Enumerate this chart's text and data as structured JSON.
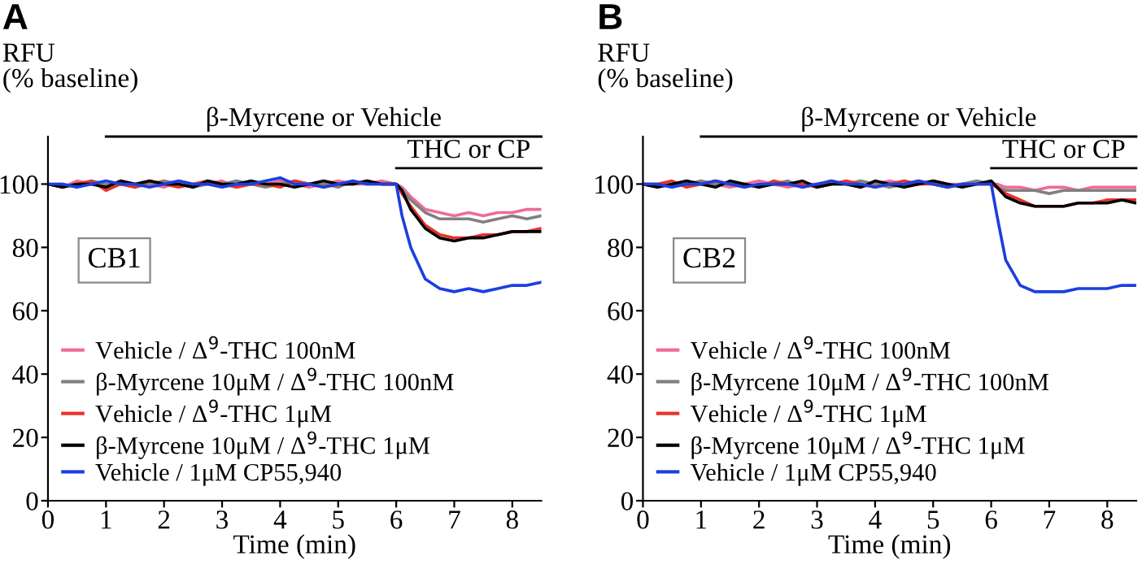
{
  "chart_data": [
    {
      "type": "line",
      "title": "A",
      "ylabel": "RFU\n(% baseline)",
      "xlabel": "Time (min)",
      "x": [
        0,
        0.25,
        0.5,
        0.75,
        1,
        1.25,
        1.5,
        1.75,
        2,
        2.25,
        2.5,
        2.75,
        3,
        3.25,
        3.5,
        3.75,
        4,
        4.25,
        4.5,
        4.75,
        5,
        5.25,
        5.5,
        5.75,
        6,
        6.1,
        6.25,
        6.5,
        6.75,
        7,
        7.25,
        7.5,
        7.75,
        8,
        8.25,
        8.5
      ],
      "series": [
        {
          "name": "Vehicle / Δ$^{9}$-THC 100nM",
          "color": "#f06a9a",
          "values": [
            100,
            99,
            101,
            100,
            99,
            101,
            100,
            100,
            99,
            101,
            100,
            100,
            101,
            99,
            100,
            100,
            101,
            100,
            99,
            100,
            101,
            100,
            100,
            101,
            100,
            99,
            96,
            92,
            91,
            90,
            91,
            90,
            91,
            91,
            92,
            92
          ]
        },
        {
          "name": "β-Myrcene 10μM / Δ$^{9}$-THC 100nM",
          "color": "#808080",
          "values": [
            100,
            100,
            99,
            101,
            100,
            100,
            99,
            100,
            101,
            100,
            99,
            100,
            100,
            101,
            100,
            99,
            100,
            101,
            100,
            100,
            99,
            101,
            100,
            100,
            100,
            98,
            95,
            91,
            89,
            89,
            89,
            88,
            89,
            90,
            89,
            90
          ]
        },
        {
          "name": "Vehicle / Δ$^{9}$-THC 1μM",
          "color": "#e8322a",
          "values": [
            100,
            99,
            100,
            101,
            98,
            100,
            99,
            101,
            100,
            99,
            100,
            101,
            100,
            99,
            100,
            100,
            99,
            101,
            100,
            99,
            100,
            100,
            101,
            100,
            100,
            97,
            93,
            87,
            84,
            83,
            83,
            84,
            84,
            85,
            85,
            86
          ]
        },
        {
          "name": "β-Myrcene 10μM / Δ$^{9}$-THC 1μM",
          "color": "#000000",
          "values": [
            100,
            99,
            100,
            100,
            99,
            101,
            100,
            101,
            100,
            100,
            99,
            101,
            100,
            100,
            101,
            100,
            100,
            99,
            100,
            101,
            100,
            100,
            101,
            100,
            100,
            98,
            92,
            86,
            83,
            82,
            83,
            83,
            84,
            85,
            85,
            85
          ]
        },
        {
          "name": "Vehicle / 1μM CP55,940",
          "color": "#1a3fe0",
          "values": [
            100,
            100,
            99,
            100,
            101,
            100,
            100,
            99,
            100,
            101,
            100,
            100,
            99,
            100,
            100,
            101,
            102,
            100,
            100,
            99,
            100,
            101,
            100,
            100,
            100,
            90,
            80,
            70,
            67,
            66,
            67,
            66,
            67,
            68,
            68,
            69
          ]
        }
      ],
      "xlim": [
        0,
        8.5
      ],
      "ylim": [
        0,
        115
      ],
      "xticks": [
        0,
        1,
        2,
        3,
        4,
        5,
        6,
        7,
        8
      ],
      "yticks": [
        0,
        20,
        40,
        60,
        80,
        100
      ],
      "annotations": [
        "β-Myrcene or Vehicle",
        "THC or CP",
        "CB1"
      ],
      "legend": "bottom left",
      "grid": false
    },
    {
      "type": "line",
      "title": "B",
      "ylabel": "RFU\n(% baseline)",
      "xlabel": "Time (min)",
      "x": [
        0,
        0.25,
        0.5,
        0.75,
        1,
        1.25,
        1.5,
        1.75,
        2,
        2.25,
        2.5,
        2.75,
        3,
        3.25,
        3.5,
        3.75,
        4,
        4.25,
        4.5,
        4.75,
        5,
        5.25,
        5.5,
        5.75,
        6,
        6.1,
        6.25,
        6.5,
        6.75,
        7,
        7.25,
        7.5,
        7.75,
        8,
        8.25,
        8.5
      ],
      "series": [
        {
          "name": "Vehicle / Δ$^{9}$-THC 100nM",
          "color": "#f06a9a",
          "values": [
            100,
            100,
            99,
            101,
            100,
            100,
            99,
            100,
            101,
            100,
            99,
            100,
            100,
            101,
            100,
            99,
            100,
            101,
            100,
            100,
            101,
            100,
            100,
            100,
            100,
            100,
            99,
            99,
            98,
            99,
            99,
            98,
            99,
            99,
            99,
            99
          ]
        },
        {
          "name": "β-Myrcene 10μM / Δ$^{9}$-THC 100nM",
          "color": "#808080",
          "values": [
            100,
            99,
            100,
            100,
            101,
            100,
            100,
            99,
            100,
            100,
            101,
            99,
            100,
            100,
            100,
            101,
            100,
            99,
            100,
            101,
            100,
            99,
            100,
            101,
            100,
            99,
            98,
            98,
            98,
            97,
            98,
            98,
            98,
            98,
            98,
            98
          ]
        },
        {
          "name": "Vehicle / Δ$^{9}$-THC 1μM",
          "color": "#e8322a",
          "values": [
            100,
            100,
            101,
            99,
            100,
            101,
            100,
            100,
            99,
            101,
            100,
            100,
            99,
            100,
            101,
            100,
            99,
            100,
            101,
            100,
            100,
            99,
            100,
            100,
            100,
            99,
            97,
            95,
            93,
            93,
            93,
            94,
            94,
            95,
            95,
            95
          ]
        },
        {
          "name": "β-Myrcene 10μM / Δ$^{9}$-THC 1μM",
          "color": "#000000",
          "values": [
            100,
            99,
            100,
            101,
            100,
            99,
            101,
            100,
            99,
            100,
            100,
            101,
            99,
            100,
            100,
            99,
            101,
            100,
            99,
            100,
            101,
            100,
            99,
            100,
            101,
            99,
            96,
            94,
            93,
            93,
            93,
            94,
            94,
            94,
            95,
            94
          ]
        },
        {
          "name": "Vehicle / 1μM CP55,940",
          "color": "#1a3fe0",
          "values": [
            100,
            100,
            99,
            100,
            100,
            101,
            100,
            99,
            100,
            100,
            100,
            99,
            100,
            101,
            100,
            100,
            99,
            100,
            100,
            101,
            100,
            99,
            100,
            100,
            100,
            90,
            76,
            68,
            66,
            66,
            66,
            67,
            67,
            67,
            68,
            68
          ]
        }
      ],
      "xlim": [
        0,
        8.5
      ],
      "ylim": [
        0,
        115
      ],
      "xticks": [
        0,
        1,
        2,
        3,
        4,
        5,
        6,
        7,
        8
      ],
      "yticks": [
        0,
        20,
        40,
        60,
        80,
        100
      ],
      "annotations": [
        "β-Myrcene or Vehicle",
        "THC or CP",
        "CB2"
      ],
      "legend": "bottom left",
      "grid": false
    }
  ]
}
